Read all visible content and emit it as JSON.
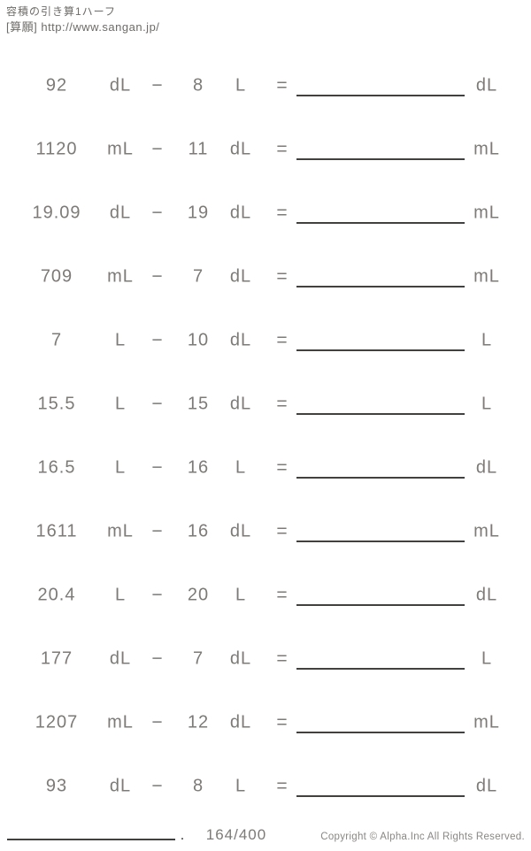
{
  "header": {
    "title": "容積の引き算1ハーフ",
    "source": "[算願] http://www.sangan.jp/"
  },
  "symbols": {
    "minus": "−",
    "equals": "="
  },
  "problems": [
    {
      "a": "92",
      "unit_a": "dL",
      "b": "8",
      "unit_b": "L",
      "answer_unit": "dL"
    },
    {
      "a": "1120",
      "unit_a": "mL",
      "b": "11",
      "unit_b": "dL",
      "answer_unit": "mL"
    },
    {
      "a": "19.09",
      "unit_a": "dL",
      "b": "19",
      "unit_b": "dL",
      "answer_unit": "mL"
    },
    {
      "a": "709",
      "unit_a": "mL",
      "b": "7",
      "unit_b": "dL",
      "answer_unit": "mL"
    },
    {
      "a": "7",
      "unit_a": "L",
      "b": "10",
      "unit_b": "dL",
      "answer_unit": "L"
    },
    {
      "a": "15.5",
      "unit_a": "L",
      "b": "15",
      "unit_b": "dL",
      "answer_unit": "L"
    },
    {
      "a": "16.5",
      "unit_a": "L",
      "b": "16",
      "unit_b": "L",
      "answer_unit": "dL"
    },
    {
      "a": "1611",
      "unit_a": "mL",
      "b": "16",
      "unit_b": "dL",
      "answer_unit": "mL"
    },
    {
      "a": "20.4",
      "unit_a": "L",
      "b": "20",
      "unit_b": "L",
      "answer_unit": "dL"
    },
    {
      "a": "177",
      "unit_a": "dL",
      "b": "7",
      "unit_b": "dL",
      "answer_unit": "L"
    },
    {
      "a": "1207",
      "unit_a": "mL",
      "b": "12",
      "unit_b": "dL",
      "answer_unit": "mL"
    },
    {
      "a": "93",
      "unit_a": "dL",
      "b": "8",
      "unit_b": "L",
      "answer_unit": "dL"
    }
  ],
  "footer": {
    "period": ".",
    "page_number": "164/400",
    "copyright": "Copyright © Alpha.Inc All Rights Reserved."
  },
  "colors": {
    "text_gray": "#7d7a77",
    "line_dark": "#434040",
    "copyright_gray": "#8a8784"
  }
}
